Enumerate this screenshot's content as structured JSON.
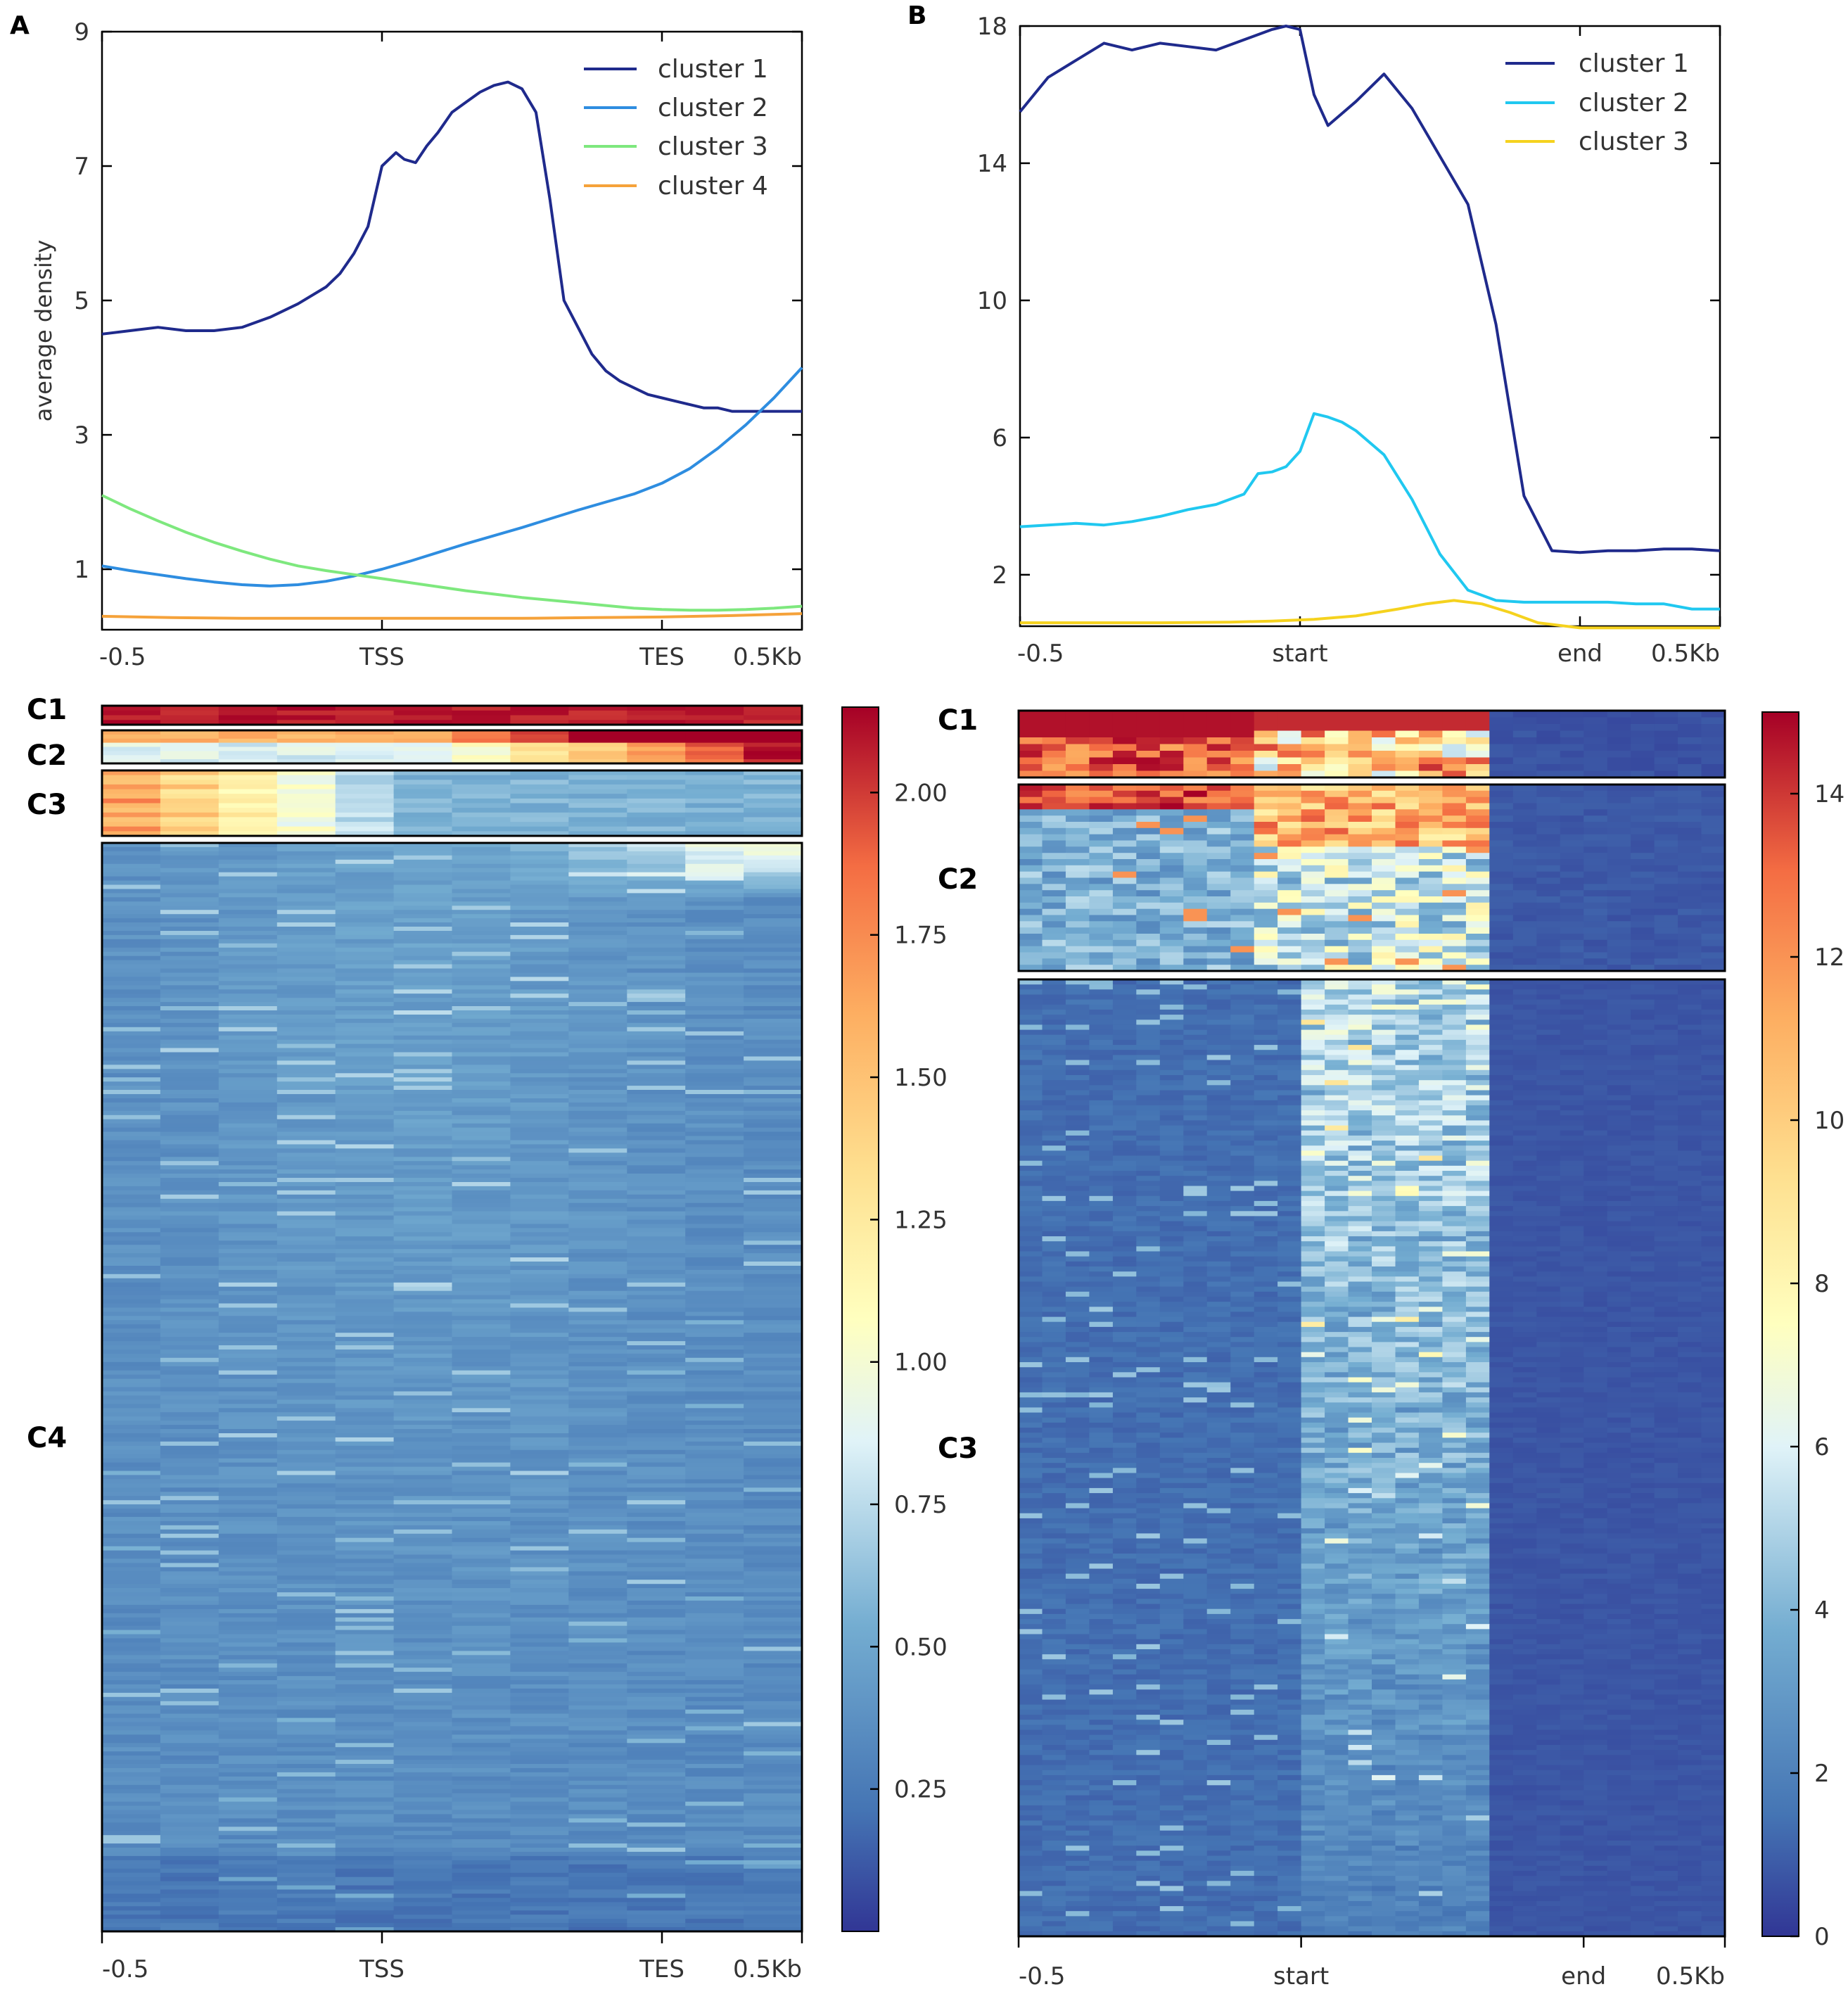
{
  "panels": [
    {
      "letter": "A",
      "profile": {
        "type": "line",
        "ylabel": "average density",
        "ylim": [
          0.1,
          9
        ],
        "yticks": [
          1,
          3,
          5,
          7,
          9
        ],
        "ytick_labels": [
          "1",
          "3",
          "5",
          "7",
          "9"
        ],
        "xlim": [
          -0.5,
          2.0
        ],
        "xticks": [
          -0.5,
          0.5,
          1.5,
          2.0
        ],
        "xtick_labels": [
          "-0.5",
          "TSS",
          "TES",
          "0.5Kb"
        ],
        "legend_position": "top-right",
        "series": [
          {
            "name": "cluster 1",
            "color": "#1f2a8c",
            "x": [
              -0.5,
              -0.4,
              -0.3,
              -0.2,
              -0.1,
              0.0,
              0.1,
              0.2,
              0.3,
              0.35,
              0.4,
              0.45,
              0.5,
              0.55,
              0.58,
              0.62,
              0.66,
              0.7,
              0.75,
              0.8,
              0.85,
              0.9,
              0.95,
              1.0,
              1.05,
              1.1,
              1.15,
              1.2,
              1.25,
              1.3,
              1.35,
              1.4,
              1.45,
              1.5,
              1.55,
              1.6,
              1.65,
              1.7,
              1.75,
              1.8,
              1.85,
              1.9,
              1.95,
              2.0
            ],
            "y": [
              4.5,
              4.55,
              4.6,
              4.55,
              4.55,
              4.6,
              4.75,
              4.95,
              5.2,
              5.4,
              5.7,
              6.1,
              7.0,
              7.2,
              7.1,
              7.05,
              7.3,
              7.5,
              7.8,
              7.95,
              8.1,
              8.2,
              8.25,
              8.15,
              7.8,
              6.5,
              5.0,
              4.6,
              4.2,
              3.95,
              3.8,
              3.7,
              3.6,
              3.55,
              3.5,
              3.45,
              3.4,
              3.4,
              3.35,
              3.35,
              3.35,
              3.35,
              3.35,
              3.35
            ]
          },
          {
            "name": "cluster 2",
            "color": "#2e8de0",
            "x": [
              -0.5,
              -0.4,
              -0.3,
              -0.2,
              -0.1,
              0.0,
              0.1,
              0.2,
              0.3,
              0.4,
              0.5,
              0.6,
              0.7,
              0.8,
              0.9,
              1.0,
              1.1,
              1.2,
              1.3,
              1.4,
              1.5,
              1.6,
              1.7,
              1.8,
              1.9,
              2.0
            ],
            "y": [
              1.05,
              0.98,
              0.92,
              0.86,
              0.81,
              0.77,
              0.75,
              0.77,
              0.82,
              0.9,
              1.0,
              1.12,
              1.25,
              1.38,
              1.5,
              1.62,
              1.75,
              1.88,
              2.0,
              2.12,
              2.28,
              2.5,
              2.8,
              3.15,
              3.55,
              4.0
            ]
          },
          {
            "name": "cluster 3",
            "color": "#7ee87e",
            "x": [
              -0.5,
              -0.4,
              -0.3,
              -0.2,
              -0.1,
              0.0,
              0.1,
              0.2,
              0.3,
              0.4,
              0.5,
              0.6,
              0.7,
              0.8,
              0.9,
              1.0,
              1.1,
              1.2,
              1.3,
              1.4,
              1.5,
              1.6,
              1.7,
              1.8,
              1.9,
              2.0
            ],
            "y": [
              2.1,
              1.9,
              1.72,
              1.55,
              1.4,
              1.27,
              1.15,
              1.05,
              0.98,
              0.92,
              0.86,
              0.8,
              0.74,
              0.68,
              0.63,
              0.58,
              0.54,
              0.5,
              0.46,
              0.42,
              0.4,
              0.39,
              0.39,
              0.4,
              0.42,
              0.45
            ]
          },
          {
            "name": "cluster 4",
            "color": "#f5a23a",
            "x": [
              -0.5,
              -0.25,
              0.0,
              0.25,
              0.5,
              0.75,
              1.0,
              1.25,
              1.5,
              1.75,
              2.0
            ],
            "y": [
              0.3,
              0.28,
              0.27,
              0.27,
              0.27,
              0.27,
              0.27,
              0.28,
              0.29,
              0.31,
              0.34
            ]
          }
        ]
      },
      "heatmap": {
        "type": "heatmap",
        "clusters": [
          "C1",
          "C2",
          "C3",
          "C4"
        ],
        "colorbar": {
          "ticks": [
            0.25,
            0.5,
            0.75,
            1.0,
            1.25,
            1.5,
            1.75,
            2.0
          ],
          "tick_labels": [
            "0.25",
            "0.50",
            "0.75",
            "1.00",
            "1.25",
            "1.50",
            "1.75",
            "2.00"
          ],
          "range": [
            0,
            2.15
          ]
        },
        "xtick_labels": [
          "-0.5",
          "TSS",
          "TES",
          "0.5Kb"
        ]
      }
    },
    {
      "letter": "B",
      "profile": {
        "type": "line",
        "ylabel": "",
        "ylim": [
          0.5,
          18
        ],
        "yticks": [
          2,
          6,
          10,
          14,
          18
        ],
        "ytick_labels": [
          "2",
          "6",
          "10",
          "14",
          "18"
        ],
        "xlim": [
          -0.5,
          2.0
        ],
        "xticks": [
          -0.5,
          0.5,
          1.5,
          2.0
        ],
        "xtick_labels": [
          "-0.5",
          "start",
          "end",
          "0.5Kb"
        ],
        "legend_position": "top-right",
        "series": [
          {
            "name": "cluster 1",
            "color": "#1f2a8c",
            "x": [
              -0.5,
              -0.4,
              -0.3,
              -0.2,
              -0.1,
              0.0,
              0.1,
              0.2,
              0.3,
              0.4,
              0.45,
              0.5,
              0.55,
              0.6,
              0.7,
              0.8,
              0.9,
              1.0,
              1.1,
              1.2,
              1.3,
              1.4,
              1.5,
              1.6,
              1.7,
              1.8,
              1.9,
              2.0
            ],
            "y": [
              15.5,
              16.5,
              17.0,
              17.5,
              17.3,
              17.5,
              17.4,
              17.3,
              17.6,
              17.9,
              18.0,
              17.9,
              16.0,
              15.1,
              15.8,
              16.6,
              15.6,
              14.2,
              12.8,
              9.3,
              4.3,
              2.7,
              2.65,
              2.7,
              2.7,
              2.75,
              2.75,
              2.7
            ]
          },
          {
            "name": "cluster 2",
            "color": "#20c8f0",
            "x": [
              -0.5,
              -0.4,
              -0.3,
              -0.2,
              -0.1,
              0.0,
              0.1,
              0.2,
              0.3,
              0.35,
              0.4,
              0.45,
              0.5,
              0.55,
              0.6,
              0.65,
              0.7,
              0.8,
              0.9,
              1.0,
              1.1,
              1.2,
              1.3,
              1.4,
              1.5,
              1.6,
              1.7,
              1.8,
              1.9,
              2.0
            ],
            "y": [
              3.4,
              3.45,
              3.5,
              3.45,
              3.55,
              3.7,
              3.9,
              4.05,
              4.35,
              4.95,
              5.0,
              5.15,
              5.6,
              6.7,
              6.6,
              6.45,
              6.2,
              5.5,
              4.2,
              2.6,
              1.55,
              1.25,
              1.2,
              1.2,
              1.2,
              1.2,
              1.15,
              1.15,
              1.0,
              1.0
            ]
          },
          {
            "name": "cluster 3",
            "color": "#f5d21e",
            "x": [
              -0.5,
              -0.25,
              0.0,
              0.25,
              0.4,
              0.55,
              0.7,
              0.85,
              0.95,
              1.05,
              1.15,
              1.25,
              1.35,
              1.5,
              1.75,
              2.0
            ],
            "y": [
              0.6,
              0.6,
              0.6,
              0.62,
              0.65,
              0.7,
              0.8,
              1.0,
              1.15,
              1.25,
              1.15,
              0.9,
              0.6,
              0.45,
              0.45,
              0.45
            ]
          }
        ]
      },
      "heatmap": {
        "type": "heatmap",
        "clusters": [
          "C1",
          "C2",
          "C3"
        ],
        "colorbar": {
          "ticks": [
            0,
            2,
            4,
            6,
            8,
            10,
            12,
            14
          ],
          "tick_labels": [
            "0",
            "2",
            "4",
            "6",
            "8",
            "10",
            "12",
            "14"
          ],
          "range": [
            0,
            15
          ]
        },
        "xtick_labels": [
          "-0.5",
          "start",
          "end",
          "0.5Kb"
        ]
      }
    }
  ],
  "chart_data": [
    {
      "type": "line",
      "title": "A",
      "xlabel": "",
      "ylabel": "average density",
      "categories": [
        "-0.5",
        "TSS",
        "TES",
        "0.5Kb"
      ],
      "series_names": [
        "cluster 1",
        "cluster 2",
        "cluster 3",
        "cluster 4"
      ],
      "ylim": [
        0.1,
        9
      ]
    },
    {
      "type": "heatmap",
      "title": "A",
      "row_groups": [
        "C1",
        "C2",
        "C3",
        "C4"
      ],
      "colorbar_range": [
        0,
        2.15
      ],
      "categories": [
        "-0.5",
        "TSS",
        "TES",
        "0.5Kb"
      ]
    },
    {
      "type": "line",
      "title": "B",
      "xlabel": "",
      "ylabel": "",
      "categories": [
        "-0.5",
        "start",
        "end",
        "0.5Kb"
      ],
      "series_names": [
        "cluster 1",
        "cluster 2",
        "cluster 3"
      ],
      "ylim": [
        0.5,
        18
      ]
    },
    {
      "type": "heatmap",
      "title": "B",
      "row_groups": [
        "C1",
        "C2",
        "C3"
      ],
      "colorbar_range": [
        0,
        15
      ],
      "categories": [
        "-0.5",
        "start",
        "end",
        "0.5Kb"
      ]
    }
  ]
}
